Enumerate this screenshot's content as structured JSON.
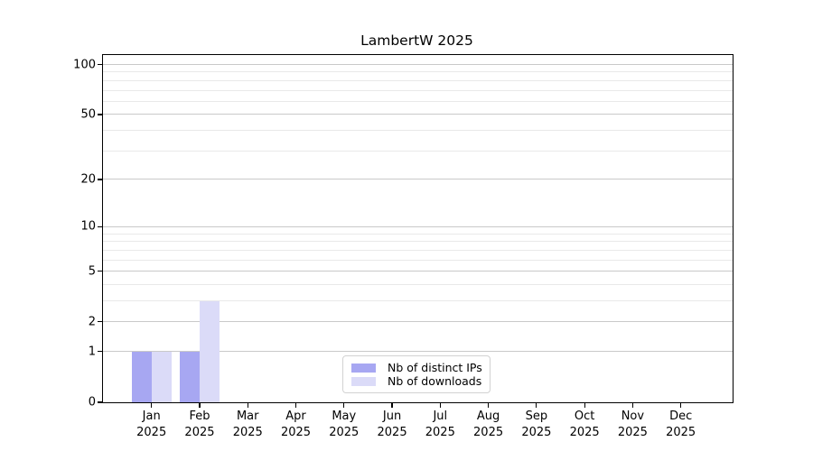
{
  "chart_data": {
    "type": "bar",
    "title": "LambertW 2025",
    "categories": [
      {
        "month": "Jan",
        "year": "2025"
      },
      {
        "month": "Feb",
        "year": "2025"
      },
      {
        "month": "Mar",
        "year": "2025"
      },
      {
        "month": "Apr",
        "year": "2025"
      },
      {
        "month": "May",
        "year": "2025"
      },
      {
        "month": "Jun",
        "year": "2025"
      },
      {
        "month": "Jul",
        "year": "2025"
      },
      {
        "month": "Aug",
        "year": "2025"
      },
      {
        "month": "Sep",
        "year": "2025"
      },
      {
        "month": "Oct",
        "year": "2025"
      },
      {
        "month": "Nov",
        "year": "2025"
      },
      {
        "month": "Dec",
        "year": "2025"
      }
    ],
    "series": [
      {
        "name": "Nb of distinct IPs",
        "color": "#a7a7f2",
        "values": [
          1,
          1,
          0,
          0,
          0,
          0,
          0,
          0,
          0,
          0,
          0,
          0
        ]
      },
      {
        "name": "Nb of downloads",
        "color": "#dbdbf8",
        "values": [
          1,
          3,
          0,
          0,
          0,
          0,
          0,
          0,
          0,
          0,
          0,
          0
        ]
      }
    ],
    "xlabel": "",
    "ylabel": "",
    "yscale": "log1p",
    "ylim": [
      0,
      114
    ],
    "yticks_major": [
      0,
      1,
      2,
      5,
      10,
      20,
      50,
      100
    ],
    "yticks_minor": [
      3,
      4,
      6,
      7,
      8,
      9,
      30,
      40,
      60,
      70,
      80,
      90
    ],
    "grid": "horizontal major + minor",
    "legend_position": "inside, lower center",
    "colors": {
      "grid_major": "#c9c9c9",
      "grid_minor": "#e9e9e9",
      "spine": "#000000",
      "background": "#ffffff"
    }
  }
}
